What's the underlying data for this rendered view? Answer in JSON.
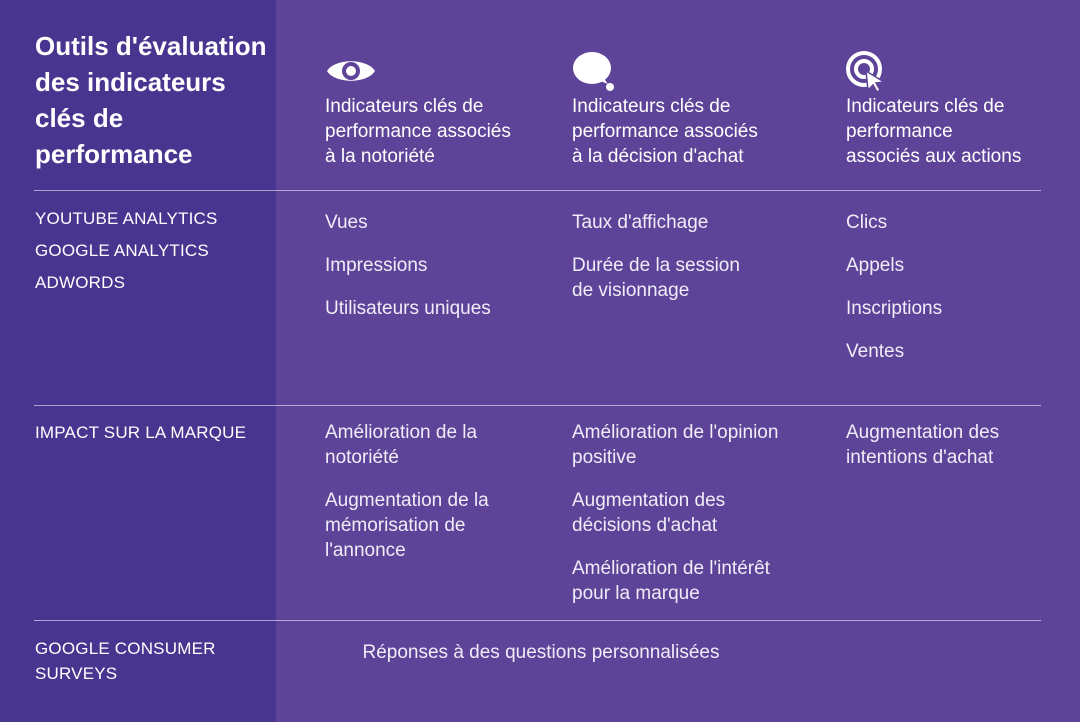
{
  "title": "Outils d'évaluation des indicateurs clés de performance",
  "columns": [
    {
      "icon": "eye-icon",
      "label": "Indicateurs clés de\nperformance associés\nà la notoriété"
    },
    {
      "icon": "speech-bubble-icon",
      "label": "Indicateurs clés de\nperformance associés\nà la décision d'achat"
    },
    {
      "icon": "target-cursor-icon",
      "label": "Indicateurs clés de\nperformance\nassociés aux actions"
    }
  ],
  "rows": [
    {
      "tools": [
        "YOUTUBE ANALYTICS",
        "GOOGLE ANALYTICS",
        "ADWORDS"
      ],
      "cells": [
        [
          "Vues",
          "Impressions",
          "Utilisateurs uniques"
        ],
        [
          "Taux d'affichage",
          "Durée de la session\nde visionnage"
        ],
        [
          "Clics",
          "Appels",
          "Inscriptions",
          "Ventes"
        ]
      ]
    },
    {
      "tools": [
        "IMPACT SUR LA MARQUE"
      ],
      "cells": [
        [
          "Amélioration de la\nnotoriété",
          "Augmentation de la\nmémorisation de\nl'annonce"
        ],
        [
          "Amélioration de l'opinion\npositive",
          "Augmentation des\ndécisions d'achat",
          "Amélioration de l'intérêt\npour la marque"
        ],
        [
          "Augmentation des\nintentions d'achat"
        ]
      ]
    },
    {
      "tools": [
        "GOOGLE CONSUMER\nSURVEYS"
      ],
      "answer": "Réponses à des questions personnalisées"
    }
  ],
  "colors": {
    "background": "#5e4498",
    "left_band": "#483590",
    "text": "#ffffff"
  }
}
